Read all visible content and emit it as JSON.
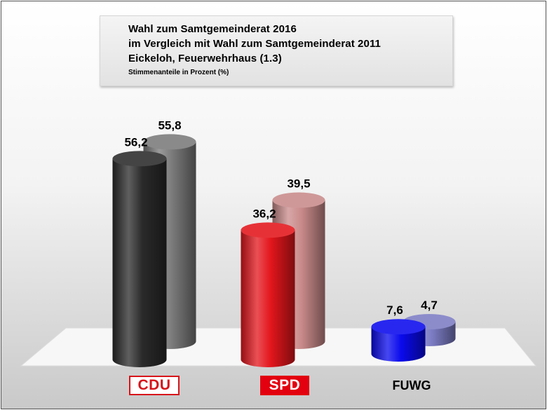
{
  "chart_data": {
    "type": "bar",
    "title": "Wahl zum Samtgemeinderat 2016",
    "title_line_2": "im Vergleich mit Wahl zum Samtgemeinderat 2011",
    "title_line_3": "Eickeloh, Feuerwehrhaus (1.3)",
    "subtitle": "Stimmenanteile in Prozent (%)",
    "categories": [
      "CDU",
      "SPD",
      "FUWG"
    ],
    "series": [
      {
        "values": [
          56.2,
          36.2,
          7.6
        ],
        "labels": [
          "56,2",
          "36,2",
          "7,6"
        ],
        "colors": [
          "#2a2a2a",
          "#e3161c",
          "#0a0aee"
        ]
      },
      {
        "values": [
          55.8,
          39.5,
          4.7
        ],
        "labels": [
          "55,8",
          "39,5",
          "4,7"
        ],
        "colors": [
          "#7a7a7a",
          "#c98a8a",
          "#7c7cc4"
        ]
      }
    ],
    "ylim": [
      0,
      60
    ],
    "grid": false,
    "legend": "none"
  },
  "logos": {
    "cdu": "CDU",
    "spd": "SPD",
    "fuwg": "FUWG"
  },
  "colors": {
    "cdu_red": "#d7141a",
    "spd_red": "#e3000f"
  }
}
